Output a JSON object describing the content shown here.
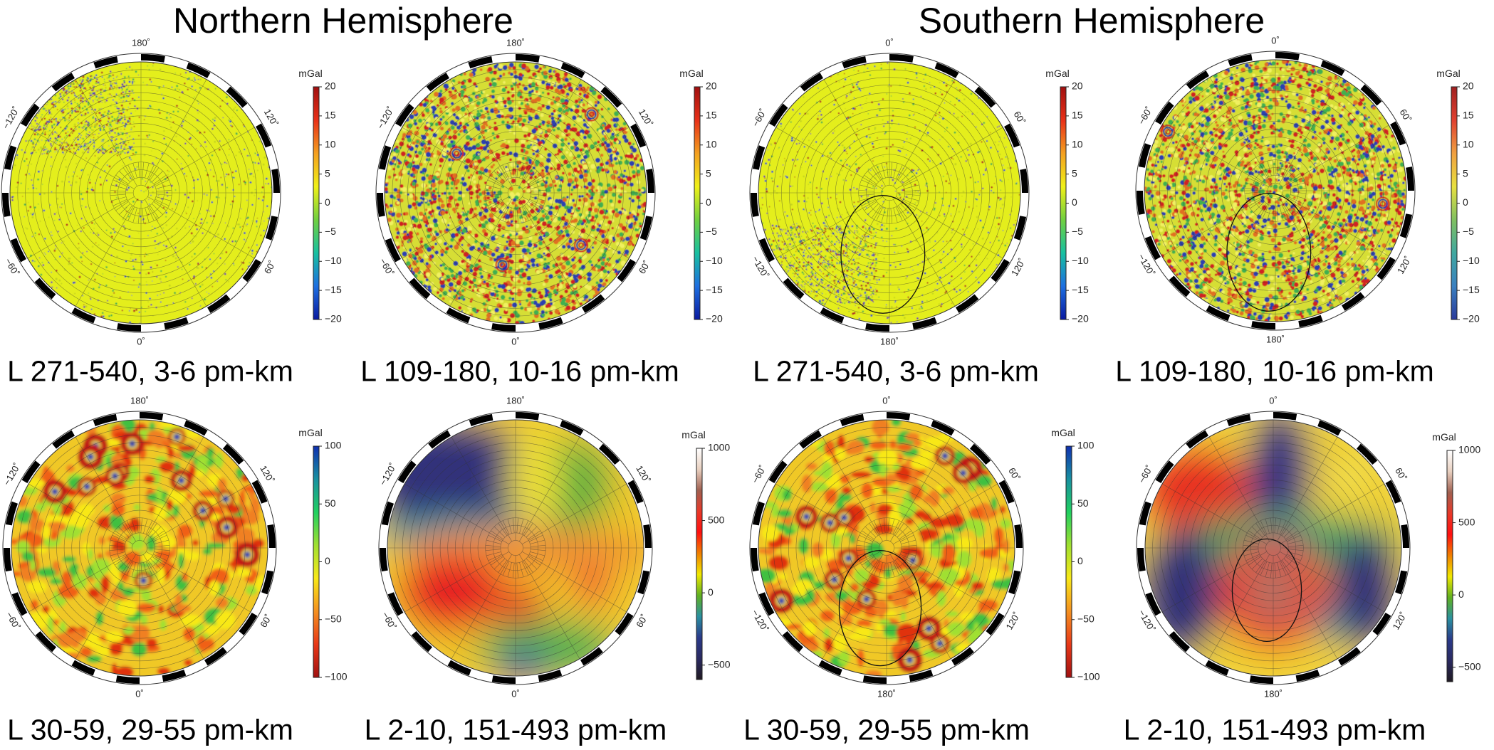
{
  "titles": {
    "north": "Northern Hemisphere",
    "south": "Southern Hemisphere"
  },
  "panels": [
    {
      "hemisphere": "north",
      "caption": "L 271-540, 3-6 pm-km",
      "style": "fine",
      "unit": "mGal",
      "ticks": [
        20,
        15,
        10,
        5,
        0,
        -5,
        -10,
        -15,
        -20
      ],
      "range": [
        -20,
        20
      ],
      "colormap": [
        "#0a1aa0",
        "#1e6fe0",
        "#18c0a0",
        "#70d040",
        "#f0f018",
        "#f4a020",
        "#e83018",
        "#a01010"
      ],
      "lon_labels": {
        "top": "180˚",
        "bottom": "0˚",
        "upper_left": "−120˚",
        "upper_right": "120˚",
        "lower_left": "−60˚",
        "lower_right": "60˚"
      }
    },
    {
      "hemisphere": "north",
      "caption": "L 109-180, 10-16 pm-km",
      "style": "medium",
      "unit": "mGal",
      "ticks": [
        20,
        15,
        10,
        5,
        0,
        -5,
        -10,
        -15,
        -20
      ],
      "range": [
        -20,
        20
      ],
      "colormap": [
        "#0a1aa0",
        "#1e6fe0",
        "#18c0a0",
        "#70d040",
        "#f0f018",
        "#f4a020",
        "#e83018",
        "#a01010"
      ],
      "lon_labels": {
        "top": "180˚",
        "bottom": "0˚",
        "upper_left": "−120˚",
        "upper_right": "120˚",
        "lower_left": "−60˚",
        "lower_right": "60˚"
      }
    },
    {
      "hemisphere": "south",
      "caption": "L 271-540, 3-6 pm-km",
      "style": "fine",
      "unit": "mGal",
      "ticks": [
        20,
        15,
        10,
        5,
        0,
        -5,
        -10,
        -15,
        -20
      ],
      "range": [
        -20,
        20
      ],
      "colormap": [
        "#0a1aa0",
        "#1e6fe0",
        "#18c0a0",
        "#70d040",
        "#f0f018",
        "#f4a020",
        "#e83018",
        "#a01010"
      ],
      "lon_labels": {
        "top": "0˚",
        "bottom": "180˚",
        "upper_left": "−60˚",
        "upper_right": "60˚",
        "lower_left": "−120˚",
        "lower_right": "120˚"
      }
    },
    {
      "hemisphere": "south",
      "caption": "L 109-180, 10-16 pm-km",
      "style": "medium",
      "unit": "mGal",
      "ticks": [
        20,
        15,
        10,
        5,
        0,
        -5,
        -10,
        -15,
        -20
      ],
      "range": [
        -20,
        20
      ],
      "colormap": [
        "#2a3a9a",
        "#3a80c0",
        "#40a8a0",
        "#80c060",
        "#e8e040",
        "#f0a040",
        "#e04030",
        "#a02020"
      ],
      "lon_labels": {
        "top": "0˚",
        "bottom": "180˚",
        "upper_left": "−60˚",
        "upper_right": "60˚",
        "lower_left": "−120˚",
        "lower_right": "120˚"
      }
    },
    {
      "hemisphere": "north",
      "caption": "L 30-59, 29-55 pm-km",
      "style": "blobs",
      "unit": "mGal",
      "ticks": [
        100,
        50,
        0,
        -50,
        -100
      ],
      "range": [
        -100,
        100
      ],
      "colormap": [
        "#a01010",
        "#e83818",
        "#f49020",
        "#f8e818",
        "#a0e030",
        "#20d060",
        "#1890a0",
        "#1030b0"
      ],
      "lon_labels": {
        "top": "180˚",
        "bottom": "0˚",
        "upper_left": "−120˚",
        "upper_right": "120˚",
        "lower_left": "−60˚",
        "lower_right": "60˚"
      }
    },
    {
      "hemisphere": "north",
      "caption": "L 2-10, 151-493 pm-km",
      "style": "smooth",
      "unit": "mGal",
      "ticks": [
        1000,
        500,
        0,
        -500
      ],
      "range": [
        -600,
        1000
      ],
      "colormap": [
        "#201a22",
        "#2a2a60",
        "#2a3a8a",
        "#2a90a0",
        "#60b020",
        "#f0e800",
        "#f08000",
        "#ff1010",
        "#e83828",
        "#a06050",
        "#e8d0c0",
        "#ffffff"
      ],
      "lon_labels": {
        "top": "180˚",
        "bottom": "0˚",
        "upper_left": "−120˚",
        "upper_right": "120˚",
        "lower_left": "−60˚",
        "lower_right": "60˚"
      }
    },
    {
      "hemisphere": "south",
      "caption": "L 30-59, 29-55 pm-km",
      "style": "blobs",
      "unit": "mGal",
      "ticks": [
        100,
        50,
        0,
        -50,
        -100
      ],
      "range": [
        -100,
        100
      ],
      "colormap": [
        "#a01010",
        "#e83818",
        "#f49020",
        "#f8e818",
        "#a0e030",
        "#20d060",
        "#1890a0",
        "#1030b0"
      ],
      "lon_labels": {
        "top": "0˚",
        "bottom": "180˚",
        "upper_left": "−60˚",
        "upper_right": "60˚",
        "lower_left": "−120˚",
        "lower_right": "120˚"
      }
    },
    {
      "hemisphere": "south",
      "caption": "L 2-10, 151-493 pm-km",
      "style": "smooth",
      "unit": "mGal",
      "ticks": [
        1000,
        500,
        0,
        -500
      ],
      "range": [
        -600,
        1000
      ],
      "colormap": [
        "#201a22",
        "#2a2a60",
        "#2a3a8a",
        "#2a90a0",
        "#60b020",
        "#f0e800",
        "#f08000",
        "#ff1010",
        "#e83828",
        "#a06050",
        "#e8d0c0",
        "#ffffff"
      ],
      "lon_labels": {
        "top": "0˚",
        "bottom": "180˚",
        "upper_left": "−60˚",
        "upper_right": "60˚",
        "lower_left": "−120˚",
        "lower_right": "120˚"
      }
    }
  ]
}
